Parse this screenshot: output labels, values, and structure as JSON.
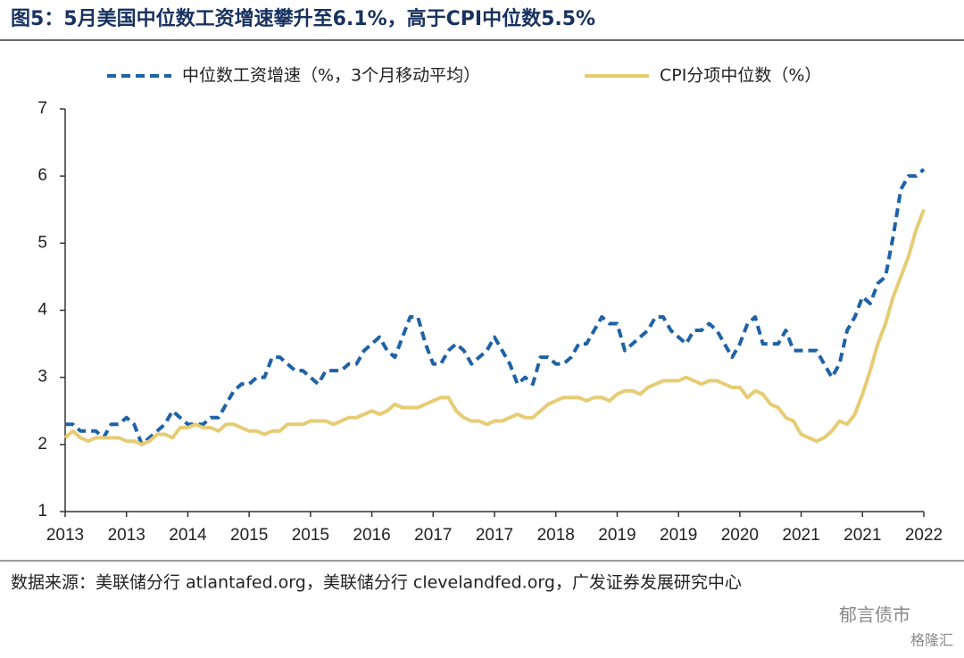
{
  "chart_data": {
    "type": "line",
    "title": "图5：5月美国中位数工资增速攀升至6.1%，高于CPI中位数5.5%",
    "source": "数据来源：美联储分行 atlantafed.org，美联储分行 clevelandfed.org，广发证券发展研究中心",
    "watermark": [
      "郁言债市",
      "格隆汇"
    ],
    "categories": [
      "2013",
      null,
      null,
      null,
      null,
      null,
      null,
      null,
      "2013",
      null,
      null,
      null,
      null,
      null,
      null,
      null,
      "2014",
      null,
      null,
      null,
      null,
      null,
      null,
      null,
      "2015",
      null,
      null,
      null,
      null,
      null,
      null,
      null,
      "2015",
      null,
      null,
      null,
      null,
      null,
      null,
      null,
      "2016",
      null,
      null,
      null,
      null,
      null,
      null,
      null,
      "2017",
      null,
      null,
      null,
      null,
      null,
      null,
      null,
      "2017",
      null,
      null,
      null,
      null,
      null,
      null,
      null,
      "2018",
      null,
      null,
      null,
      null,
      null,
      null,
      null,
      "2019",
      null,
      null,
      null,
      null,
      null,
      null,
      null,
      "2019",
      null,
      null,
      null,
      null,
      null,
      null,
      null,
      "2020",
      null,
      null,
      null,
      null,
      null,
      null,
      null,
      "2021",
      null,
      null,
      null,
      null,
      null,
      null,
      null,
      "2021",
      null,
      null,
      null,
      null,
      null,
      null,
      null,
      "2022"
    ],
    "series": [
      {
        "name": "中位数工资增速（%，3个月移动平均）",
        "color": "#1f62a6",
        "dashed": true,
        "values": [
          2.3,
          2.3,
          2.2,
          2.2,
          2.2,
          2.1,
          2.3,
          2.3,
          2.4,
          2.3,
          2.0,
          2.1,
          2.2,
          2.3,
          2.5,
          2.4,
          2.3,
          2.3,
          2.3,
          2.4,
          2.4,
          2.6,
          2.8,
          2.9,
          2.9,
          3.0,
          3.0,
          3.3,
          3.3,
          3.2,
          3.1,
          3.1,
          3.0,
          2.9,
          3.1,
          3.1,
          3.1,
          3.2,
          3.2,
          3.4,
          3.5,
          3.6,
          3.4,
          3.3,
          3.6,
          3.9,
          3.9,
          3.5,
          3.2,
          3.2,
          3.4,
          3.5,
          3.4,
          3.2,
          3.3,
          3.4,
          3.6,
          3.4,
          3.2,
          2.9,
          3.0,
          2.9,
          3.3,
          3.3,
          3.2,
          3.2,
          3.3,
          3.5,
          3.5,
          3.7,
          3.9,
          3.8,
          3.8,
          3.4,
          3.5,
          3.6,
          3.7,
          3.9,
          3.9,
          3.7,
          3.6,
          3.5,
          3.7,
          3.7,
          3.8,
          3.7,
          3.5,
          3.3,
          3.5,
          3.8,
          3.9,
          3.5,
          3.5,
          3.5,
          3.7,
          3.4,
          3.4,
          3.4,
          3.4,
          3.2,
          3.0,
          3.2,
          3.7,
          3.9,
          4.2,
          4.1,
          4.4,
          4.5,
          5.1,
          5.8,
          6.0,
          6.0,
          6.1
        ]
      },
      {
        "name": "CPI分项中位数（%）",
        "color": "#e6cc74",
        "dashed": false,
        "values": [
          2.1,
          2.2,
          2.1,
          2.05,
          2.1,
          2.1,
          2.1,
          2.1,
          2.05,
          2.05,
          2.0,
          2.05,
          2.15,
          2.15,
          2.1,
          2.25,
          2.25,
          2.3,
          2.25,
          2.25,
          2.2,
          2.3,
          2.3,
          2.25,
          2.2,
          2.2,
          2.15,
          2.2,
          2.2,
          2.3,
          2.3,
          2.3,
          2.35,
          2.35,
          2.35,
          2.3,
          2.35,
          2.4,
          2.4,
          2.45,
          2.5,
          2.45,
          2.5,
          2.6,
          2.55,
          2.55,
          2.55,
          2.6,
          2.65,
          2.7,
          2.7,
          2.5,
          2.4,
          2.35,
          2.35,
          2.3,
          2.35,
          2.35,
          2.4,
          2.45,
          2.4,
          2.4,
          2.5,
          2.6,
          2.65,
          2.7,
          2.7,
          2.7,
          2.65,
          2.7,
          2.7,
          2.65,
          2.75,
          2.8,
          2.8,
          2.75,
          2.85,
          2.9,
          2.95,
          2.95,
          2.95,
          3.0,
          2.95,
          2.9,
          2.95,
          2.95,
          2.9,
          2.85,
          2.85,
          2.7,
          2.8,
          2.75,
          2.6,
          2.55,
          2.4,
          2.35,
          2.15,
          2.1,
          2.05,
          2.1,
          2.2,
          2.35,
          2.3,
          2.45,
          2.75,
          3.1,
          3.5,
          3.8,
          4.2,
          4.5,
          4.8,
          5.2,
          5.5
        ]
      }
    ],
    "ylim": [
      1,
      7
    ],
    "yticks": [
      1,
      2,
      3,
      4,
      5,
      6,
      7
    ],
    "grid": false,
    "legend": "top"
  }
}
